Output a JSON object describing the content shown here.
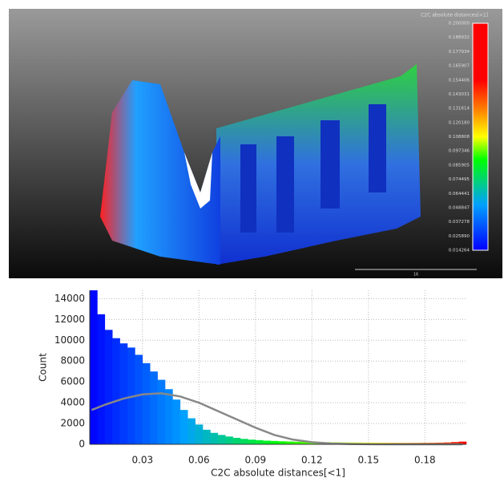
{
  "viewer": {
    "scale_title": "C2C absolute distances[<1]",
    "scale_labels": [
      "0.200000",
      "0.188932",
      "0.177934",
      "0.165907",
      "0.154406",
      "0.143031",
      "0.131614",
      "0.120180",
      "0.108808",
      "0.097346",
      "0.085905",
      "0.074495",
      "0.064441",
      "0.048847",
      "0.037278",
      "0.025890",
      "0.014264"
    ],
    "scale_bar_label": "16"
  },
  "chart_data": {
    "type": "histogram",
    "x_label": "C2C absolute distances[<1]",
    "y_label": "Count",
    "bins": [
      0.002,
      0.006,
      0.01,
      0.014,
      0.018,
      0.022,
      0.026,
      0.03,
      0.034,
      0.038,
      0.042,
      0.046,
      0.05,
      0.054,
      0.058,
      0.062,
      0.066,
      0.07,
      0.074,
      0.078,
      0.082,
      0.086,
      0.09,
      0.094,
      0.098,
      0.102,
      0.106,
      0.11,
      0.114,
      0.118,
      0.122,
      0.126,
      0.13,
      0.134,
      0.138,
      0.142,
      0.146,
      0.15,
      0.154,
      0.158,
      0.162,
      0.166,
      0.17,
      0.174,
      0.178,
      0.182,
      0.186,
      0.19,
      0.194,
      0.198,
      0.202
    ],
    "values": [
      14800,
      12500,
      11000,
      10200,
      9700,
      9300,
      8600,
      7800,
      7000,
      6200,
      5300,
      4300,
      3300,
      2500,
      1900,
      1400,
      1100,
      900,
      750,
      620,
      520,
      450,
      400,
      350,
      320,
      290,
      270,
      250,
      230,
      220,
      210,
      200,
      190,
      180,
      175,
      170,
      165,
      160,
      155,
      150,
      145,
      140,
      140,
      140,
      145,
      150,
      160,
      180,
      220,
      260
    ],
    "colormap": [
      "#0000ff",
      "#00a0ff",
      "#00ff00",
      "#ffff00",
      "#ff0000"
    ],
    "fit": {
      "color": "#888888",
      "x": [
        0.003,
        0.01,
        0.02,
        0.03,
        0.04,
        0.05,
        0.06,
        0.07,
        0.08,
        0.09,
        0.1,
        0.11,
        0.12,
        0.13,
        0.14,
        0.15,
        0.16,
        0.2
      ],
      "values": [
        3300,
        3800,
        4400,
        4800,
        4900,
        4600,
        4000,
        3200,
        2400,
        1600,
        900,
        450,
        200,
        80,
        30,
        10,
        0,
        0
      ]
    },
    "xlim": [
      0.002,
      0.202
    ],
    "ylim": [
      0,
      14800
    ],
    "xticks": [
      0.03,
      0.06,
      0.09,
      0.12,
      0.15,
      0.18
    ],
    "yticks": [
      0,
      2000,
      4000,
      6000,
      8000,
      10000,
      12000,
      14000
    ],
    "grid": true
  }
}
